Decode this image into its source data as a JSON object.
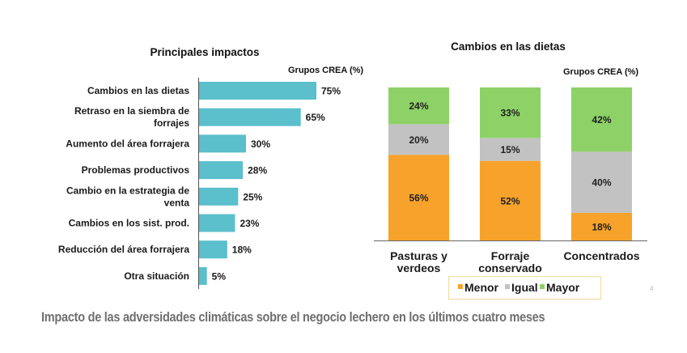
{
  "chart_data": [
    {
      "type": "bar",
      "orientation": "horizontal",
      "title": "Principales impactos",
      "subtitle": "Grupos CREA (%)",
      "categories": [
        [
          "Cambios en las dietas"
        ],
        [
          "Retraso en la siembra de",
          "forrajes"
        ],
        [
          "Aumento del área forrajera"
        ],
        [
          "Problemas productivos"
        ],
        [
          "Cambio en la estrategia de",
          "venta"
        ],
        [
          "Cambios en los sist. prod."
        ],
        [
          "Reducción del área forrajera"
        ],
        [
          "Otra situación"
        ]
      ],
      "values": [
        75,
        65,
        30,
        28,
        25,
        23,
        18,
        5
      ],
      "value_labels": [
        "75%",
        "65%",
        "30%",
        "28%",
        "25%",
        "23%",
        "18%",
        "5%"
      ],
      "xlim": [
        0,
        100
      ],
      "grid": false,
      "color": "#5bbfcc"
    },
    {
      "type": "bar",
      "orientation": "vertical",
      "stacked": true,
      "title": "Cambios en las dietas",
      "subtitle": "Grupos CREA (%)",
      "categories": [
        [
          "Pasturas y",
          "verdeos"
        ],
        [
          "Forraje",
          "conservado"
        ],
        [
          "Concentrados"
        ]
      ],
      "series": [
        {
          "name": "Menor",
          "values": [
            56,
            52,
            18
          ],
          "color": "#f7a22a"
        },
        {
          "name": "Igual",
          "values": [
            20,
            15,
            40
          ],
          "color": "#c2c2c2"
        },
        {
          "name": "Mayor",
          "values": [
            24,
            33,
            42
          ],
          "color": "#8ed167"
        }
      ],
      "ylim": [
        0,
        100
      ],
      "grid": false,
      "legend": "bottom",
      "legend_border_color": "#f6dca4"
    }
  ],
  "page_number": "4",
  "caption": "Impacto de las adversidades climáticas sobre el negocio lechero en los últimos cuatro meses"
}
